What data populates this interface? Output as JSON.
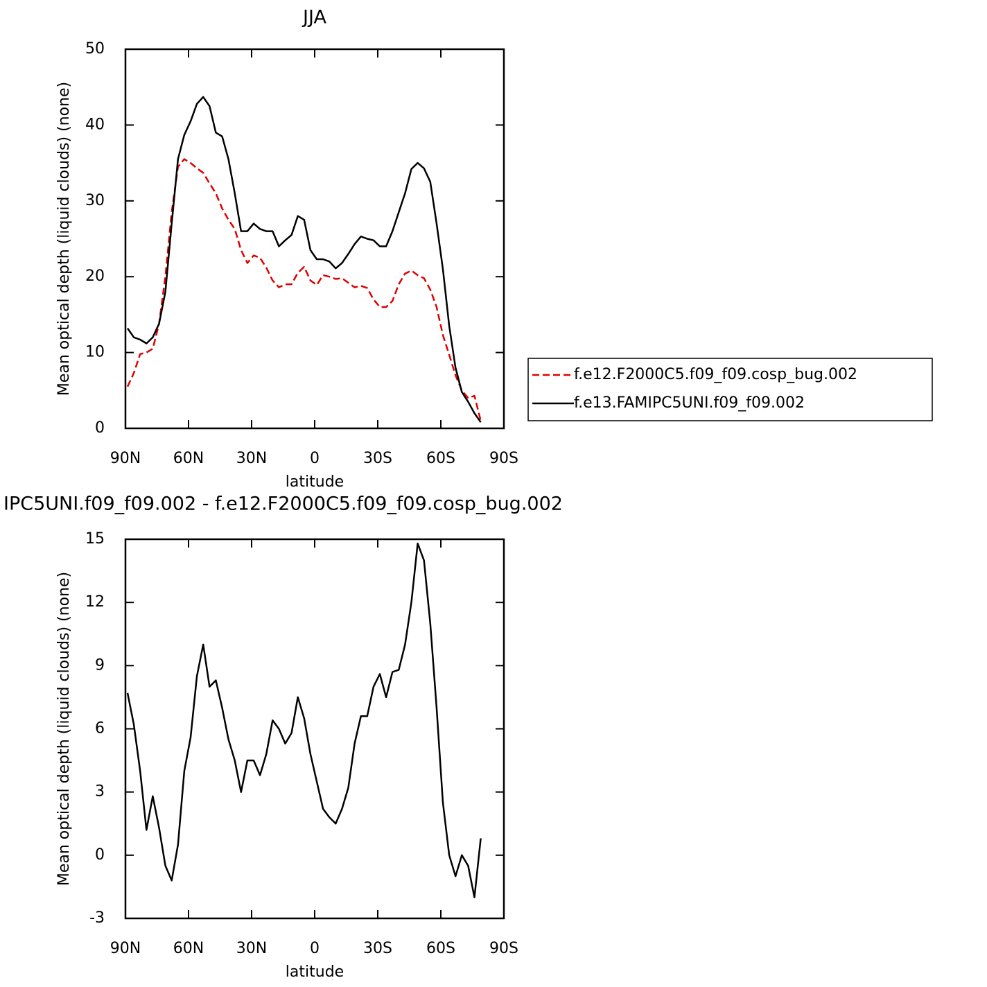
{
  "chart_data": [
    {
      "type": "line",
      "title": "JJA",
      "xlabel": "latitude",
      "ylabel": "Mean optical depth (liquid clouds) (none)",
      "x": [
        89,
        86,
        83,
        80,
        77,
        74,
        71,
        68,
        65,
        62,
        59,
        56,
        53,
        50,
        47,
        44,
        41,
        38,
        35,
        32,
        29,
        26,
        23,
        20,
        17,
        14,
        11,
        8,
        5,
        2,
        -1,
        -4,
        -7,
        -10,
        -13,
        -16,
        -19,
        -22,
        -25,
        -28,
        -31,
        -34,
        -37,
        -40,
        -43,
        -46,
        -49,
        -52,
        -55,
        -58,
        -61,
        -64,
        -67,
        -70,
        -73,
        -76,
        -79
      ],
      "series": [
        {
          "name": "f.e12.F2000C5.f09_f09.cosp_bug.002",
          "color": "#e00000",
          "dash": true,
          "values": [
            5.5,
            7.3,
            9.8,
            10,
            10.5,
            13.8,
            20,
            28.5,
            34.5,
            35.5,
            35,
            34.3,
            33.7,
            32.3,
            31,
            29,
            27.5,
            26.3,
            23.5,
            21.8,
            22.8,
            22.5,
            21.2,
            19.5,
            18.6,
            19,
            19,
            20.5,
            21.3,
            19.5,
            18.9,
            20.2,
            20,
            19.7,
            19.8,
            19.2,
            18.6,
            18.8,
            18.5,
            17,
            16,
            16,
            16.8,
            19,
            20.4,
            20.8,
            20.2,
            19.8,
            18.3,
            16,
            12.3,
            9.7,
            7,
            5,
            4,
            4.3,
            1
          ]
        },
        {
          "name": "f.e13.FAMIPC5UNI.f09_f09.002",
          "color": "#000000",
          "dash": false,
          "values": [
            13.2,
            12,
            11.7,
            11.2,
            12,
            13.8,
            18,
            27,
            35.5,
            38.7,
            40.5,
            42.8,
            43.7,
            42.5,
            39,
            38.5,
            35.5,
            31,
            26,
            26,
            27,
            26.3,
            26,
            26,
            24,
            24.8,
            25.5,
            28,
            27.5,
            23.5,
            22.3,
            22.3,
            22,
            21.1,
            21.8,
            23,
            24.3,
            25.3,
            25,
            24.8,
            24,
            24,
            26,
            28.5,
            31,
            34.2,
            35,
            34.3,
            32.5,
            27,
            21,
            13.5,
            8,
            4.8,
            3.5,
            2,
            0.8
          ]
        }
      ],
      "xlim": [
        90,
        -90
      ],
      "xticks": [
        {
          "value": 90,
          "label": "90N"
        },
        {
          "value": 60,
          "label": "60N"
        },
        {
          "value": 30,
          "label": "30N"
        },
        0,
        {
          "value": -30,
          "label": "30S"
        },
        {
          "value": -60,
          "label": "60S"
        },
        {
          "value": -90,
          "label": "90S"
        }
      ],
      "ylim": [
        0,
        50
      ],
      "yticks": [
        0,
        10,
        20,
        30,
        40,
        50
      ],
      "legend": "right"
    },
    {
      "type": "line",
      "title": "IPC5UNI.f09_f09.002 - f.e12.F2000C5.f09_f09.cosp_bug.002",
      "xlabel": "latitude",
      "ylabel": "Mean optical depth (liquid clouds) (none)",
      "x": [
        89,
        86,
        83,
        80,
        77,
        74,
        71,
        68,
        65,
        62,
        59,
        56,
        53,
        50,
        47,
        44,
        41,
        38,
        35,
        32,
        29,
        26,
        23,
        20,
        17,
        14,
        11,
        8,
        5,
        2,
        -1,
        -4,
        -7,
        -10,
        -13,
        -16,
        -19,
        -22,
        -25,
        -28,
        -31,
        -34,
        -37,
        -40,
        -43,
        -46,
        -49,
        -52,
        -55,
        -58,
        -61,
        -64,
        -67,
        -70,
        -73,
        -76,
        -79
      ],
      "series": [
        {
          "color": "#000000",
          "dash": false,
          "values": [
            7.7,
            6.2,
            4,
            1.2,
            2.8,
            1.3,
            -0.5,
            -1.2,
            0.5,
            4,
            5.6,
            8.5,
            10,
            8,
            8.3,
            7,
            5.5,
            4.5,
            3,
            4.5,
            4.5,
            3.8,
            4.8,
            6.4,
            6,
            5.3,
            5.8,
            7.5,
            6.5,
            4.8,
            3.5,
            2.2,
            1.8,
            1.5,
            2.2,
            3.2,
            5.3,
            6.6,
            6.6,
            8,
            8.6,
            7.5,
            8.7,
            8.8,
            10,
            12,
            14.8,
            14,
            11,
            7,
            2.5,
            0,
            -1,
            0,
            -0.5,
            -2,
            0.8
          ]
        }
      ],
      "xlim": [
        90,
        -90
      ],
      "xticks": [
        {
          "value": 90,
          "label": "90N"
        },
        {
          "value": 60,
          "label": "60N"
        },
        {
          "value": 30,
          "label": "30N"
        },
        0,
        {
          "value": -30,
          "label": "30S"
        },
        {
          "value": -60,
          "label": "60S"
        },
        {
          "value": -90,
          "label": "90S"
        }
      ],
      "ylim": [
        -3,
        15
      ],
      "yticks": [
        -3,
        0,
        3,
        6,
        9,
        12,
        15
      ]
    }
  ]
}
